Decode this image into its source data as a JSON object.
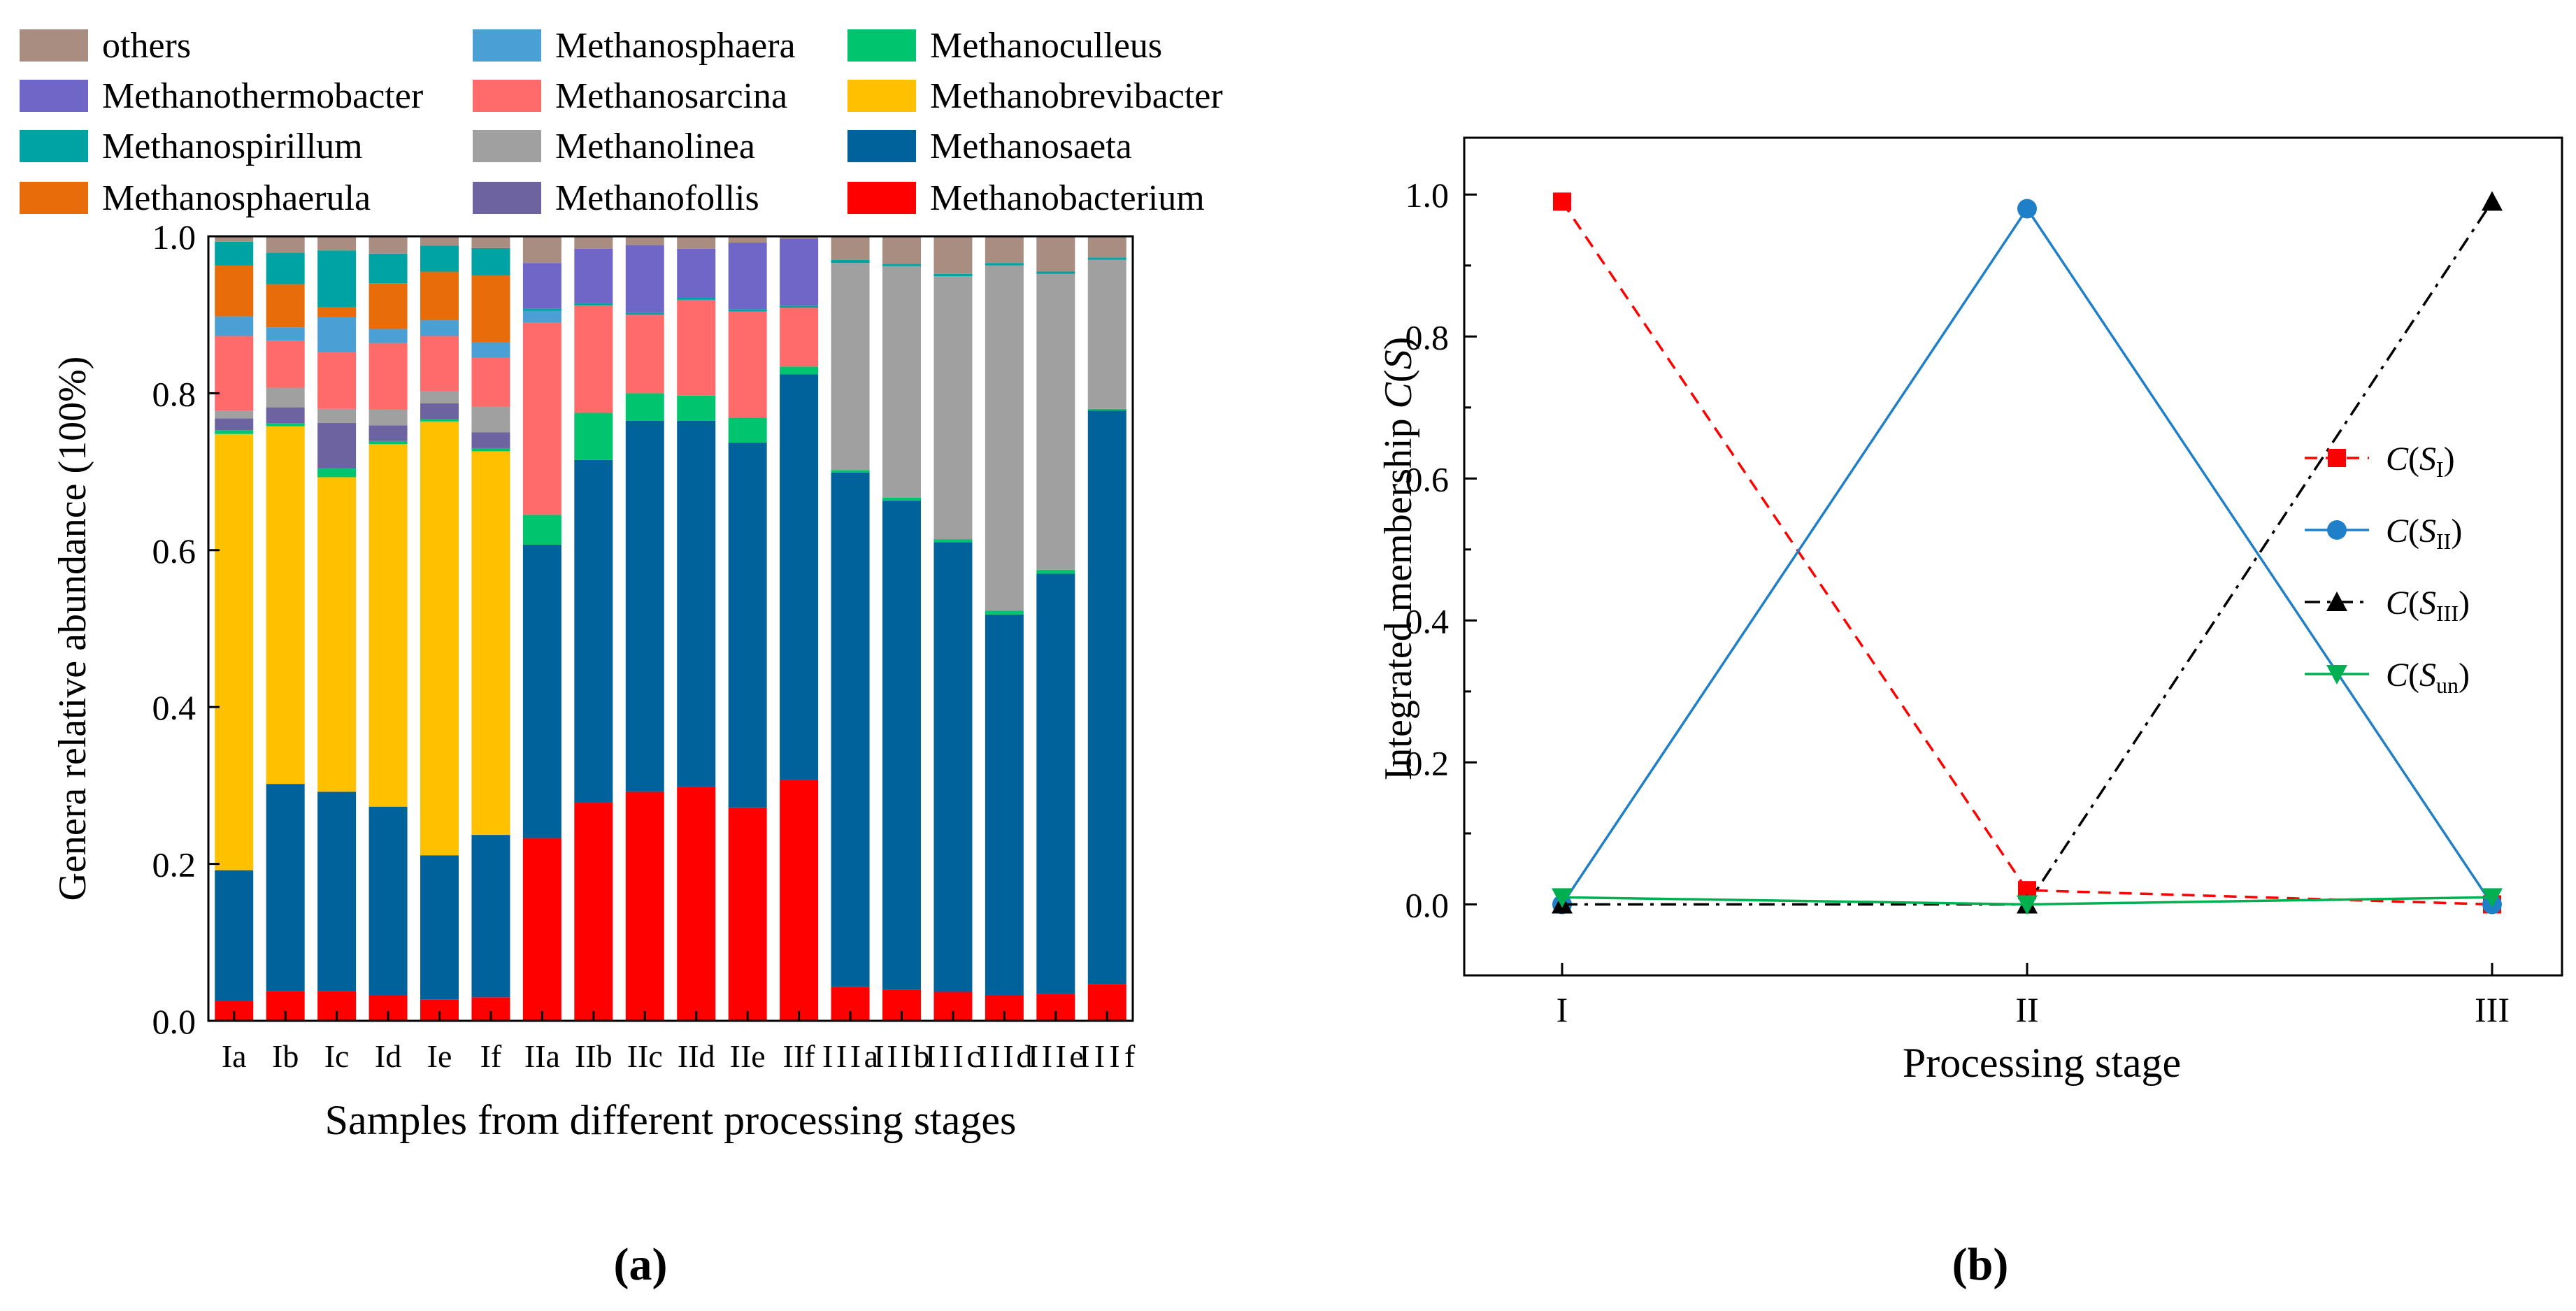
{
  "chart_data": [
    {
      "type": "bar",
      "stacked": true,
      "panel_label": "(a)",
      "xlabel": "Samples from different processing stages",
      "ylabel": "Genera relative abundance (100%)",
      "ylim": [
        0,
        1.0
      ],
      "yticks": [
        0.0,
        0.2,
        0.4,
        0.6,
        0.8,
        1.0
      ],
      "ytick_labels": [
        "0.0",
        "0.2",
        "0.4",
        "0.6",
        "0.8",
        "1.0"
      ],
      "legend_position": "top",
      "categories": [
        "Ia",
        "Ib",
        "Ic",
        "Id",
        "Ie",
        "If",
        "IIa",
        "IIb",
        "IIc",
        "IId",
        "IIe",
        "IIf",
        "IIIa",
        "IIIb",
        "IIIc",
        "IIId",
        "IIIe",
        "IIIf"
      ],
      "series": [
        {
          "name": "Methanobacterium",
          "color": "#FF0000",
          "values": [
            0.025,
            0.038,
            0.038,
            0.033,
            0.027,
            0.03,
            0.233,
            0.278,
            0.292,
            0.298,
            0.272,
            0.307,
            0.043,
            0.04,
            0.037,
            0.033,
            0.034,
            0.047
          ]
        },
        {
          "name": "Methanosaeta",
          "color": "#00629B",
          "values": [
            0.167,
            0.264,
            0.254,
            0.24,
            0.184,
            0.207,
            0.374,
            0.437,
            0.473,
            0.467,
            0.465,
            0.517,
            0.656,
            0.623,
            0.573,
            0.485,
            0.536,
            0.731
          ]
        },
        {
          "name": "Methanobrevibacter",
          "color": "#FFC000",
          "values": [
            0.556,
            0.456,
            0.401,
            0.462,
            0.553,
            0.489,
            0,
            0,
            0,
            0,
            0,
            0,
            0,
            0,
            0,
            0,
            0,
            0
          ]
        },
        {
          "name": "Methanoculleus",
          "color": "#00C46E",
          "values": [
            0.005,
            0.004,
            0.011,
            0.004,
            0.003,
            0.004,
            0.038,
            0.06,
            0.035,
            0.032,
            0.032,
            0.01,
            0.003,
            0.004,
            0.004,
            0.005,
            0.005,
            0.002
          ]
        },
        {
          "name": "Methanofollis",
          "color": "#6C63A0",
          "values": [
            0.015,
            0.02,
            0.058,
            0.02,
            0.02,
            0.02,
            0,
            0,
            0,
            0,
            0,
            0,
            0,
            0,
            0,
            0,
            0,
            0
          ]
        },
        {
          "name": "Methanolinea",
          "color": "#A0A0A0",
          "values": [
            0.01,
            0.025,
            0.018,
            0.02,
            0.016,
            0.033,
            0,
            0,
            0,
            0,
            0,
            0,
            0.264,
            0.295,
            0.335,
            0.44,
            0.377,
            0.19
          ]
        },
        {
          "name": "Methanosarcina",
          "color": "#FF6B6B",
          "values": [
            0.095,
            0.06,
            0.072,
            0.085,
            0.07,
            0.062,
            0.245,
            0.137,
            0.1,
            0.122,
            0.135,
            0.075,
            0,
            0,
            0,
            0,
            0,
            0
          ]
        },
        {
          "name": "Methanosphaera",
          "color": "#4A9FD5",
          "values": [
            0.025,
            0.017,
            0.045,
            0.018,
            0.02,
            0.02,
            0.015,
            0,
            0,
            0,
            0,
            0,
            0,
            0,
            0,
            0,
            0,
            0
          ]
        },
        {
          "name": "Methanosphaerula",
          "color": "#E86C0A",
          "values": [
            0.065,
            0.055,
            0.013,
            0.058,
            0.062,
            0.085,
            0,
            0,
            0,
            0,
            0,
            0,
            0,
            0,
            0,
            0,
            0,
            0
          ]
        },
        {
          "name": "Methanospirillum",
          "color": "#00A3A3",
          "values": [
            0.03,
            0.04,
            0.072,
            0.038,
            0.033,
            0.035,
            0.003,
            0.003,
            0.003,
            0.003,
            0.003,
            0.003,
            0.004,
            0.003,
            0.003,
            0.003,
            0.003,
            0.003
          ]
        },
        {
          "name": "Methanothermobacter",
          "color": "#7066C8",
          "values": [
            0,
            0,
            0,
            0,
            0,
            0,
            0.058,
            0.069,
            0.086,
            0.062,
            0.085,
            0.085,
            0,
            0,
            0,
            0,
            0,
            0
          ]
        },
        {
          "name": "others",
          "color": "#A98D80",
          "values": [
            0.007,
            0.021,
            0.018,
            0.022,
            0.012,
            0.015,
            0.034,
            0.016,
            0.011,
            0.016,
            0.008,
            0.003,
            0.03,
            0.035,
            0.048,
            0.034,
            0.045,
            0.027
          ]
        }
      ],
      "legend_order": [
        "others",
        "Methanothermobacter",
        "Methanospirillum",
        "Methanosphaerula",
        "Methanosphaera",
        "Methanosarcina",
        "Methanolinea",
        "Methanofollis",
        "Methanoculleus",
        "Methanobrevibacter",
        "Methanosaeta",
        "Methanobacterium"
      ]
    },
    {
      "type": "line",
      "panel_label": "(b)",
      "xlabel": "Processing stage",
      "ylabel_prefix": "Integrated membership ",
      "ylabel_var": "C",
      "ylabel_open": "(",
      "ylabel_sym": "S",
      "ylabel_close": ")",
      "ylim": [
        -0.1,
        1.08
      ],
      "yticks": [
        0.0,
        0.2,
        0.4,
        0.6,
        0.8,
        1.0
      ],
      "ytick_labels": [
        "0.0",
        "0.2",
        "0.4",
        "0.6",
        "0.8",
        "1.0"
      ],
      "x": [
        "I",
        "II",
        "III"
      ],
      "legend_position": "right",
      "series": [
        {
          "name": "C(S_I)",
          "label_c": "C",
          "label_sub": "I",
          "color": "#FF0000",
          "marker": "square",
          "dash": "dashed",
          "values": [
            0.99,
            0.02,
            0.0
          ]
        },
        {
          "name": "C(S_II)",
          "label_c": "C",
          "label_sub": "II",
          "color": "#1F7FC8",
          "marker": "circle",
          "dash": "solid",
          "values": [
            0.0,
            0.98,
            0.0
          ]
        },
        {
          "name": "C(S_III)",
          "label_c": "C",
          "label_sub": "III",
          "color": "#000000",
          "marker": "triangle-up",
          "dash": "dashdot",
          "values": [
            0.0,
            0.0,
            0.99
          ]
        },
        {
          "name": "C(S_un)",
          "label_c": "C",
          "label_sub": "un",
          "color": "#00B050",
          "marker": "triangle-down",
          "dash": "solid",
          "values": [
            0.01,
            0.0,
            0.01
          ]
        }
      ]
    }
  ]
}
